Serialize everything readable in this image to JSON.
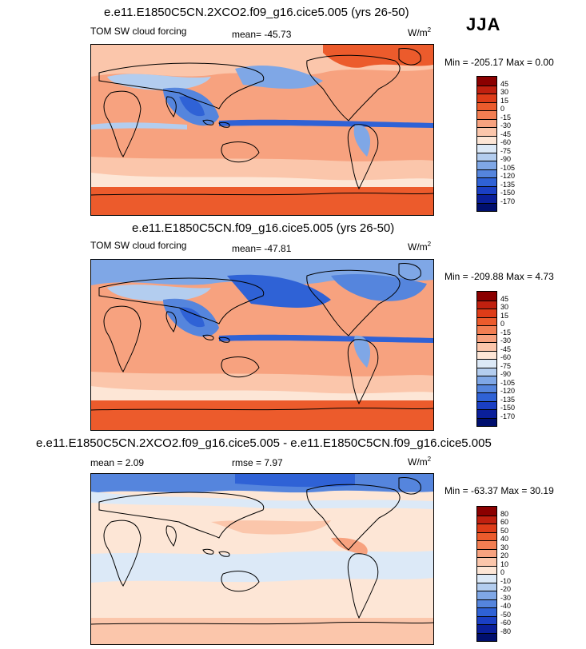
{
  "season": "JJA",
  "panels": [
    {
      "title": "e.e11.E1850C5CN.2XCO2.f09_g16.cice5.005 (yrs 26-50)",
      "left_label": "TOM SW cloud forcing",
      "center_label": "mean= -45.73",
      "units": "W/m",
      "units_sup": "2",
      "minmax": "Min = -205.17 Max =   0.00",
      "colorbar": {
        "labels": [
          "45",
          "30",
          "15",
          "0",
          "-15",
          "-30",
          "-45",
          "-60",
          "-75",
          "-90",
          "-105",
          "-120",
          "-135",
          "-150",
          "-170"
        ],
        "colors": [
          "#8b0000",
          "#c0200f",
          "#de3c18",
          "#ec5b2c",
          "#f27e52",
          "#f7a27f",
          "#fbc6ab",
          "#fde6d6",
          "#dce9f7",
          "#b3cdef",
          "#7fa7e6",
          "#5585dd",
          "#2f62d6",
          "#1a3fc4",
          "#0a1f9a",
          "#000f6e"
        ]
      }
    },
    {
      "title": "e.e11.E1850C5CN.f09_g16.cice5.005 (yrs 26-50)",
      "left_label": "TOM SW cloud forcing",
      "center_label": "mean= -47.81",
      "units": "W/m",
      "units_sup": "2",
      "minmax": "Min = -209.88 Max =   4.73",
      "colorbar": {
        "labels": [
          "45",
          "30",
          "15",
          "0",
          "-15",
          "-30",
          "-45",
          "-60",
          "-75",
          "-90",
          "-105",
          "-120",
          "-135",
          "-150",
          "-170"
        ],
        "colors": [
          "#8b0000",
          "#c0200f",
          "#de3c18",
          "#ec5b2c",
          "#f27e52",
          "#f7a27f",
          "#fbc6ab",
          "#fde6d6",
          "#dce9f7",
          "#b3cdef",
          "#7fa7e6",
          "#5585dd",
          "#2f62d6",
          "#1a3fc4",
          "#0a1f9a",
          "#000f6e"
        ]
      }
    },
    {
      "title": "e.e11.E1850C5CN.2XCO2.f09_g16.cice5.005 - e.e11.E1850C5CN.f09_g16.cice5.005",
      "left_label": "mean =  2.09",
      "center_label": "rmse =  7.97",
      "units": "W/m",
      "units_sup": "2",
      "minmax": "Min = -63.37 Max =  30.19",
      "colorbar": {
        "labels": [
          "80",
          "60",
          "50",
          "40",
          "30",
          "20",
          "10",
          "0",
          "-10",
          "-20",
          "-30",
          "-40",
          "-50",
          "-60",
          "-80"
        ],
        "colors": [
          "#8b0000",
          "#c0200f",
          "#de3c18",
          "#ec5b2c",
          "#f27e52",
          "#f7a27f",
          "#fbc6ab",
          "#fde6d6",
          "#dce9f7",
          "#b3cdef",
          "#7fa7e6",
          "#5585dd",
          "#2f62d6",
          "#1a3fc4",
          "#0a1f9a",
          "#000f6e"
        ]
      }
    }
  ]
}
